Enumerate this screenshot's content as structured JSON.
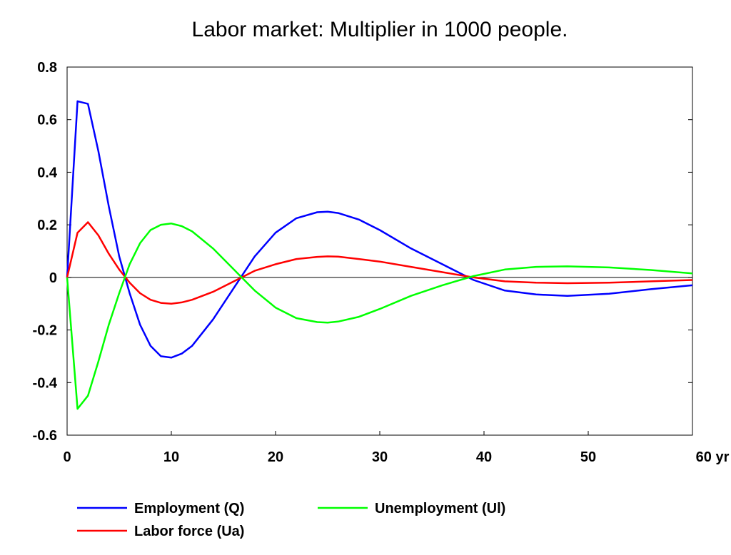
{
  "chart_data": {
    "type": "line",
    "title": "Labor market: Multiplier in 1000 people.",
    "xlabel": "",
    "ylabel": "",
    "x_unit_label": "yr",
    "xlim": [
      0,
      60
    ],
    "ylim": [
      -0.6,
      0.8
    ],
    "x_ticks": [
      0,
      10,
      20,
      30,
      40,
      50,
      60
    ],
    "x_tick_labels": [
      "0",
      "10",
      "20",
      "30",
      "40",
      "50",
      "60 yr"
    ],
    "y_ticks": [
      0.8,
      0.6,
      0.4,
      0.2,
      0,
      -0.2,
      -0.4,
      -0.6
    ],
    "y_tick_labels": [
      "0.8",
      "0.6",
      "0.4",
      "0.2",
      "0",
      "-0.2",
      "-0.4",
      "-0.6"
    ],
    "grid": false,
    "zero_line": true,
    "legend_position": "bottom",
    "series": [
      {
        "name": "Employment (Q)",
        "color": "#0000ff",
        "x": [
          0,
          1,
          2,
          3,
          4,
          5,
          6,
          7,
          8,
          9,
          10,
          11,
          12,
          14,
          16,
          18,
          20,
          22,
          24,
          25,
          26,
          28,
          30,
          33,
          36,
          39,
          42,
          45,
          48,
          52,
          56,
          60
        ],
        "y": [
          0,
          0.67,
          0.66,
          0.48,
          0.27,
          0.08,
          -0.06,
          -0.18,
          -0.26,
          -0.3,
          -0.305,
          -0.29,
          -0.26,
          -0.16,
          -0.04,
          0.08,
          0.17,
          0.225,
          0.248,
          0.25,
          0.245,
          0.22,
          0.18,
          0.11,
          0.05,
          -0.01,
          -0.05,
          -0.065,
          -0.07,
          -0.062,
          -0.045,
          -0.03
        ]
      },
      {
        "name": "Labor force (Ua)",
        "color": "#ff0000",
        "x": [
          0,
          1,
          2,
          3,
          4,
          5,
          6,
          7,
          8,
          9,
          10,
          11,
          12,
          14,
          16,
          18,
          20,
          22,
          24,
          25,
          26,
          28,
          30,
          33,
          36,
          39,
          42,
          45,
          48,
          52,
          56,
          60
        ],
        "y": [
          0,
          0.17,
          0.21,
          0.16,
          0.09,
          0.03,
          -0.02,
          -0.06,
          -0.085,
          -0.097,
          -0.1,
          -0.095,
          -0.085,
          -0.055,
          -0.015,
          0.025,
          0.05,
          0.07,
          0.078,
          0.08,
          0.079,
          0.07,
          0.06,
          0.04,
          0.02,
          0.0,
          -0.015,
          -0.02,
          -0.022,
          -0.02,
          -0.015,
          -0.01
        ]
      },
      {
        "name": "Unemployment (Ul)",
        "color": "#00ff00",
        "x": [
          0,
          1,
          2,
          3,
          4,
          5,
          6,
          7,
          8,
          9,
          10,
          11,
          12,
          14,
          16,
          18,
          20,
          22,
          24,
          25,
          26,
          28,
          30,
          33,
          36,
          39,
          42,
          45,
          48,
          52,
          56,
          60
        ],
        "y": [
          0,
          -0.5,
          -0.45,
          -0.32,
          -0.18,
          -0.06,
          0.05,
          0.13,
          0.18,
          0.2,
          0.205,
          0.195,
          0.175,
          0.11,
          0.03,
          -0.05,
          -0.115,
          -0.155,
          -0.17,
          -0.172,
          -0.168,
          -0.15,
          -0.12,
          -0.07,
          -0.03,
          0.005,
          0.03,
          0.04,
          0.042,
          0.038,
          0.028,
          0.015
        ]
      }
    ]
  }
}
